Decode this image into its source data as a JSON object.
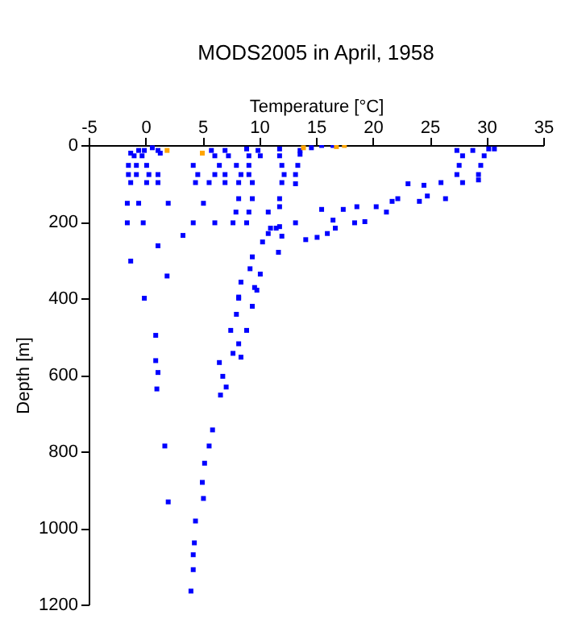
{
  "chart_data": {
    "type": "scatter",
    "title": "MODS2005 in April, 1958",
    "xlabel": "Temperature [°C]",
    "ylabel": "Depth [m]",
    "xlim": [
      -5,
      35
    ],
    "xticks": [
      -5,
      0,
      5,
      10,
      15,
      20,
      25,
      30,
      35
    ],
    "ylim": [
      1200,
      0
    ],
    "yticks": [
      0,
      200,
      400,
      600,
      800,
      1000,
      1200
    ],
    "grid": false,
    "marker": "square",
    "series": [
      {
        "color": "#0000ff",
        "x": [
          -0.6,
          -0.1,
          0.6,
          1.1,
          -1.3,
          -1.0,
          -0.3,
          1.3,
          -1.5,
          -0.8,
          0.1,
          -1.5,
          -0.8,
          0.3,
          1.1,
          -1.3,
          0.1,
          1.1,
          -1.6,
          -0.6,
          -1.6,
          -0.2,
          1.1,
          -1.3,
          1.9,
          -0.1,
          0.9,
          0.9,
          1.1,
          1.0,
          1.7,
          2.0,
          8.2,
          8.0,
          7.5,
          8.2,
          7.7,
          6.5,
          6.8,
          6.6,
          5.9,
          5.6,
          5.2,
          5.0,
          5.1,
          4.4,
          4.3,
          4.2,
          4.2,
          4.0,
          9.8,
          9.4,
          8.9,
          8.4,
          7.1,
          5.8,
          7.0,
          8.9,
          9.9,
          11.8,
          13.6,
          14.6,
          15.5,
          16.5,
          6.1,
          7.3,
          9.1,
          10.1,
          11.8,
          13.6,
          4.2,
          6.5,
          8.0,
          9.1,
          12.0,
          13.4,
          4.6,
          6.1,
          7.0,
          8.4,
          9.1,
          12.2,
          13.2,
          4.4,
          5.6,
          7.0,
          8.2,
          9.4,
          12.0,
          13.2,
          2.0,
          5.1,
          8.2,
          9.4,
          11.8,
          11.8,
          7.96,
          9.1,
          10.8,
          4.2,
          6.1,
          7.7,
          8.9,
          11.0,
          11.8,
          13.2,
          3.3,
          11.5,
          10.8,
          12.0,
          10.3,
          11.7,
          9.4,
          9.2,
          10.1,
          8.4,
          9.6,
          8.2,
          27.4,
          28.8,
          30.2,
          30.7,
          27.9,
          29.8,
          27.6,
          29.5,
          27.4,
          29.3,
          27.9,
          29.3,
          26.0,
          23.1,
          24.5,
          26.4,
          24.8,
          24.1,
          21.7,
          22.2,
          20.3,
          18.6,
          17.4,
          15.5,
          19.3,
          18.4,
          16.5,
          16.7,
          16.0,
          15.1,
          14.1,
          21.2
        ],
        "values": [
          14,
          14,
          7,
          14,
          21,
          28,
          28,
          21,
          53,
          53,
          53,
          77,
          77,
          77,
          77,
          98,
          98,
          98,
          152,
          152,
          203,
          203,
          263,
          303,
          342,
          400,
          497,
          563,
          594,
          637,
          786,
          932,
          400,
          442,
          484,
          519,
          544,
          568,
          604,
          653,
          744,
          786,
          831,
          881,
          923,
          982,
          1039,
          1070,
          1109,
          1165,
          379,
          421,
          484,
          554,
          632,
          14,
          14,
          10,
          14,
          10,
          14,
          7,
          1,
          1,
          28,
          28,
          28,
          28,
          28,
          24,
          53,
          53,
          53,
          53,
          53,
          53,
          77,
          77,
          77,
          77,
          77,
          77,
          77,
          98,
          98,
          98,
          98,
          98,
          98,
          101,
          152,
          152,
          140,
          140,
          140,
          161,
          175,
          175,
          175,
          203,
          203,
          203,
          203,
          217,
          213,
          203,
          236,
          217,
          231,
          238,
          253,
          280,
          292,
          323,
          337,
          358,
          372,
          397,
          14,
          14,
          10,
          10,
          28,
          28,
          53,
          53,
          77,
          77,
          98,
          91,
          98,
          101,
          105,
          140,
          133,
          147,
          147,
          140,
          161,
          161,
          168,
          168,
          200,
          203,
          196,
          217,
          231,
          241,
          247,
          175
        ]
      },
      {
        "color": "#ffa500",
        "x": [
          1.9,
          5.0,
          13.9,
          16.8,
          17.5
        ],
        "values": [
          14,
          21,
          7,
          4,
          1
        ]
      }
    ]
  }
}
